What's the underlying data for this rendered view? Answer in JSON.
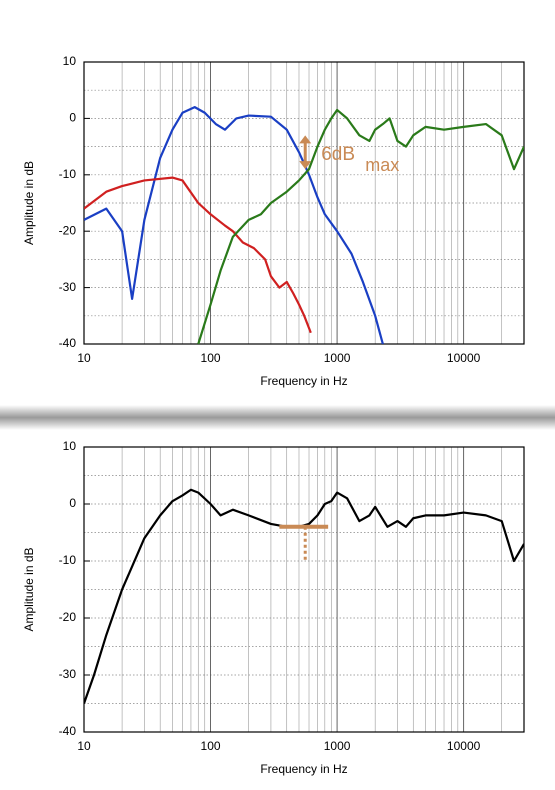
{
  "chart_data": [
    {
      "type": "line",
      "log_x": true,
      "grid": true,
      "x_label": "Frequency in Hz",
      "y_label": "Amplitude in dB",
      "xlim": [
        10,
        30000
      ],
      "xticks": [
        10,
        100,
        1000,
        10000
      ],
      "ylim": [
        -40,
        10
      ],
      "yticks": [
        -40,
        -30,
        -20,
        -10,
        0,
        10
      ],
      "annotations": [
        "6dB",
        "max"
      ],
      "series": [
        {
          "color": "#1a3fc4",
          "x": [
            10,
            15,
            20,
            24,
            30,
            40,
            50,
            60,
            75,
            90,
            110,
            130,
            160,
            200,
            300,
            400,
            500,
            600,
            700,
            800,
            1000,
            1300,
            1600,
            2000,
            2300
          ],
          "values": [
            -18,
            -16,
            -20,
            -32,
            -18,
            -7,
            -2,
            1,
            2,
            1,
            -1,
            -2,
            0,
            0.5,
            0.3,
            -2,
            -6,
            -10,
            -14,
            -17,
            -20,
            -24,
            -29,
            -35,
            -40
          ]
        },
        {
          "color": "#d02020",
          "x": [
            10,
            15,
            20,
            30,
            50,
            60,
            80,
            100,
            130,
            150,
            180,
            220,
            270,
            300,
            350,
            400,
            450,
            500,
            550,
            620
          ],
          "values": [
            -16,
            -13,
            -12,
            -11,
            -10.5,
            -11,
            -15,
            -17,
            -19,
            -20,
            -22,
            -23,
            -25,
            -28,
            -30,
            -29,
            -31,
            -33,
            -35,
            -38
          ]
        },
        {
          "color": "#2a7a1a",
          "x": [
            80,
            100,
            120,
            150,
            200,
            250,
            300,
            400,
            500,
            600,
            700,
            800,
            900,
            1000,
            1200,
            1500,
            1800,
            2000,
            2300,
            2600,
            3000,
            3500,
            4000,
            5000,
            7000,
            10000,
            15000,
            20000,
            25000,
            30000
          ],
          "values": [
            -40,
            -33,
            -27,
            -21,
            -18,
            -17,
            -15,
            -13,
            -11,
            -9,
            -5,
            -2,
            0,
            1.5,
            0,
            -3,
            -4,
            -2,
            -1,
            0,
            -4,
            -5,
            -3,
            -1.5,
            -2,
            -1.5,
            -1,
            -3,
            -9,
            -5
          ]
        }
      ]
    },
    {
      "type": "line",
      "log_x": true,
      "grid": true,
      "x_label": "Frequency in Hz",
      "y_label": "Amplitude in dB",
      "xlim": [
        10,
        30000
      ],
      "xticks": [
        10,
        100,
        1000,
        10000
      ],
      "ylim": [
        -40,
        10
      ],
      "yticks": [
        -40,
        -30,
        -20,
        -10,
        0,
        10
      ],
      "series": [
        {
          "color": "#000000",
          "x": [
            10,
            12,
            15,
            20,
            30,
            40,
            50,
            60,
            70,
            80,
            100,
            120,
            150,
            200,
            300,
            400,
            500,
            600,
            700,
            800,
            900,
            1000,
            1200,
            1500,
            1800,
            2000,
            2200,
            2500,
            3000,
            3500,
            4000,
            5000,
            7000,
            10000,
            15000,
            20000,
            25000,
            30000
          ],
          "values": [
            -35,
            -30,
            -23,
            -15,
            -6,
            -2,
            0.5,
            1.5,
            2.5,
            2,
            0,
            -2,
            -1,
            -2,
            -3.5,
            -4,
            -4,
            -3.5,
            -2,
            0,
            0.5,
            2,
            1,
            -3,
            -2,
            -0.5,
            -2,
            -4,
            -3,
            -4,
            -2.5,
            -2,
            -2,
            -1.5,
            -2,
            -3,
            -10,
            -7
          ]
        }
      ]
    }
  ]
}
